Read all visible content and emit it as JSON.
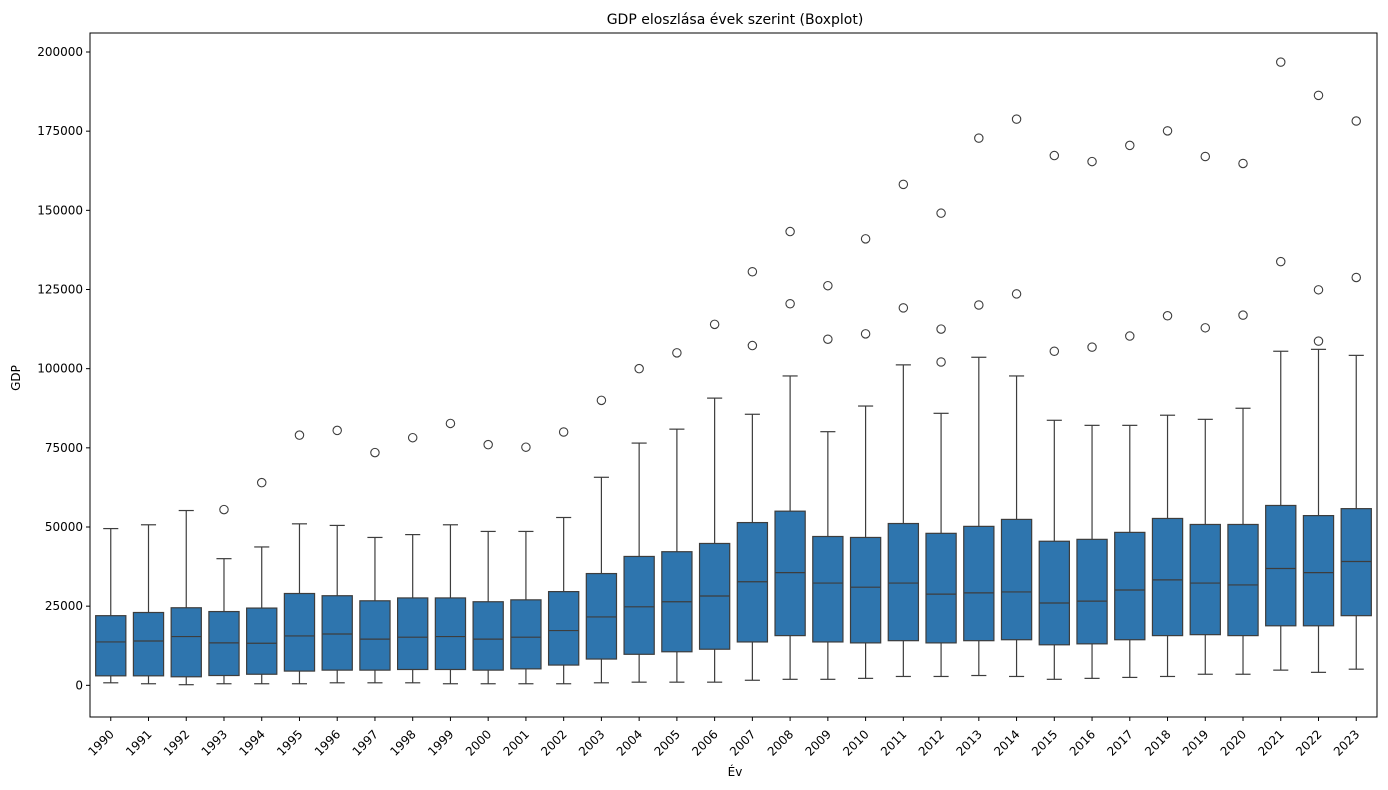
{
  "chart_data": {
    "type": "boxplot",
    "title": "GDP eloszlása évek szerint (Boxplot)",
    "xlabel": "Év",
    "ylabel": "GDP",
    "ylim": [
      -10000,
      206000
    ],
    "yticks": [
      0,
      25000,
      50000,
      75000,
      100000,
      125000,
      150000,
      175000,
      200000
    ],
    "color": "#2e75ae",
    "line_color": "#3d3d3d",
    "grid": false,
    "categories": [
      "1990",
      "1991",
      "1992",
      "1993",
      "1994",
      "1995",
      "1996",
      "1997",
      "1998",
      "1999",
      "2000",
      "2001",
      "2002",
      "2003",
      "2004",
      "2005",
      "2006",
      "2007",
      "2008",
      "2009",
      "2010",
      "2011",
      "2012",
      "2013",
      "2014",
      "2015",
      "2016",
      "2017",
      "2018",
      "2019",
      "2020",
      "2021",
      "2022",
      "2023"
    ],
    "boxes": [
      {
        "whislo": 800,
        "q1": 3000,
        "med": 13700,
        "q3": 22000,
        "whishi": 49500,
        "fliers": []
      },
      {
        "whislo": 500,
        "q1": 3000,
        "med": 14000,
        "q3": 23000,
        "whishi": 50700,
        "fliers": []
      },
      {
        "whislo": 200,
        "q1": 2700,
        "med": 15400,
        "q3": 24500,
        "whishi": 55200,
        "fliers": []
      },
      {
        "whislo": 500,
        "q1": 3100,
        "med": 13400,
        "q3": 23300,
        "whishi": 40000,
        "fliers": [
          55500
        ]
      },
      {
        "whislo": 500,
        "q1": 3500,
        "med": 13300,
        "q3": 24400,
        "whishi": 43700,
        "fliers": [
          64000
        ]
      },
      {
        "whislo": 500,
        "q1": 4500,
        "med": 15600,
        "q3": 29000,
        "whishi": 51000,
        "fliers": [
          79000
        ]
      },
      {
        "whislo": 800,
        "q1": 4800,
        "med": 16200,
        "q3": 28300,
        "whishi": 50500,
        "fliers": [
          80500
        ]
      },
      {
        "whislo": 800,
        "q1": 4800,
        "med": 14600,
        "q3": 26700,
        "whishi": 46700,
        "fliers": [
          73500
        ]
      },
      {
        "whislo": 800,
        "q1": 5000,
        "med": 15200,
        "q3": 27600,
        "whishi": 47600,
        "fliers": [
          78200
        ]
      },
      {
        "whislo": 500,
        "q1": 5000,
        "med": 15400,
        "q3": 27600,
        "whishi": 50700,
        "fliers": [
          82700
        ]
      },
      {
        "whislo": 500,
        "q1": 4800,
        "med": 14600,
        "q3": 26400,
        "whishi": 48600,
        "fliers": [
          76000
        ]
      },
      {
        "whislo": 500,
        "q1": 5200,
        "med": 15200,
        "q3": 27000,
        "whishi": 48600,
        "fliers": [
          75200
        ]
      },
      {
        "whislo": 500,
        "q1": 6400,
        "med": 17300,
        "q3": 29600,
        "whishi": 53000,
        "fliers": [
          80000
        ]
      },
      {
        "whislo": 800,
        "q1": 8300,
        "med": 21600,
        "q3": 35300,
        "whishi": 65700,
        "fliers": [
          90000
        ]
      },
      {
        "whislo": 1000,
        "q1": 9800,
        "med": 24800,
        "q3": 40700,
        "whishi": 76500,
        "fliers": [
          100000
        ]
      },
      {
        "whislo": 1000,
        "q1": 10600,
        "med": 26400,
        "q3": 42200,
        "whishi": 80900,
        "fliers": [
          105000
        ]
      },
      {
        "whislo": 1000,
        "q1": 11400,
        "med": 28200,
        "q3": 44800,
        "whishi": 90700,
        "fliers": [
          114000
        ]
      },
      {
        "whislo": 1600,
        "q1": 13700,
        "med": 32700,
        "q3": 51400,
        "whishi": 85600,
        "fliers": [
          107300,
          130600
        ]
      },
      {
        "whislo": 1900,
        "q1": 15700,
        "med": 35600,
        "q3": 55000,
        "whishi": 97700,
        "fliers": [
          120500,
          143300
        ]
      },
      {
        "whislo": 1900,
        "q1": 13700,
        "med": 32300,
        "q3": 47000,
        "whishi": 80100,
        "fliers": [
          109300,
          126200
        ]
      },
      {
        "whislo": 2200,
        "q1": 13400,
        "med": 31000,
        "q3": 46700,
        "whishi": 88200,
        "fliers": [
          111000,
          141000
        ]
      },
      {
        "whislo": 2800,
        "q1": 14100,
        "med": 32300,
        "q3": 51100,
        "whishi": 101200,
        "fliers": [
          119200,
          158200
        ]
      },
      {
        "whislo": 2800,
        "q1": 13400,
        "med": 28800,
        "q3": 48000,
        "whishi": 85900,
        "fliers": [
          102100,
          112500,
          149100
        ]
      },
      {
        "whislo": 3100,
        "q1": 14100,
        "med": 29200,
        "q3": 50200,
        "whishi": 103600,
        "fliers": [
          120100,
          172800
        ]
      },
      {
        "whislo": 2800,
        "q1": 14400,
        "med": 29500,
        "q3": 52400,
        "whishi": 97700,
        "fliers": [
          123600,
          178800
        ]
      },
      {
        "whislo": 1900,
        "q1": 12800,
        "med": 26000,
        "q3": 45500,
        "whishi": 83700,
        "fliers": [
          105500,
          167300
        ]
      },
      {
        "whislo": 2200,
        "q1": 13100,
        "med": 26600,
        "q3": 46100,
        "whishi": 82100,
        "fliers": [
          106800,
          165400
        ]
      },
      {
        "whislo": 2500,
        "q1": 14400,
        "med": 30100,
        "q3": 48300,
        "whishi": 82100,
        "fliers": [
          110300,
          170500
        ]
      },
      {
        "whislo": 2800,
        "q1": 15700,
        "med": 33300,
        "q3": 52700,
        "whishi": 85300,
        "fliers": [
          116700,
          175100
        ]
      },
      {
        "whislo": 3500,
        "q1": 16000,
        "med": 32300,
        "q3": 50800,
        "whishi": 84000,
        "fliers": [
          112900,
          167000
        ]
      },
      {
        "whislo": 3500,
        "q1": 15700,
        "med": 31700,
        "q3": 50800,
        "whishi": 87500,
        "fliers": [
          116900,
          164800
        ]
      },
      {
        "whislo": 4800,
        "q1": 18800,
        "med": 36900,
        "q3": 56800,
        "whishi": 105500,
        "fliers": [
          133800,
          196800
        ]
      },
      {
        "whislo": 4100,
        "q1": 18800,
        "med": 35600,
        "q3": 53600,
        "whishi": 106100,
        "fliers": [
          108700,
          124900,
          186300
        ]
      },
      {
        "whislo": 5100,
        "q1": 22000,
        "med": 39100,
        "q3": 55800,
        "whishi": 104200,
        "fliers": [
          128800,
          178200
        ]
      }
    ]
  }
}
